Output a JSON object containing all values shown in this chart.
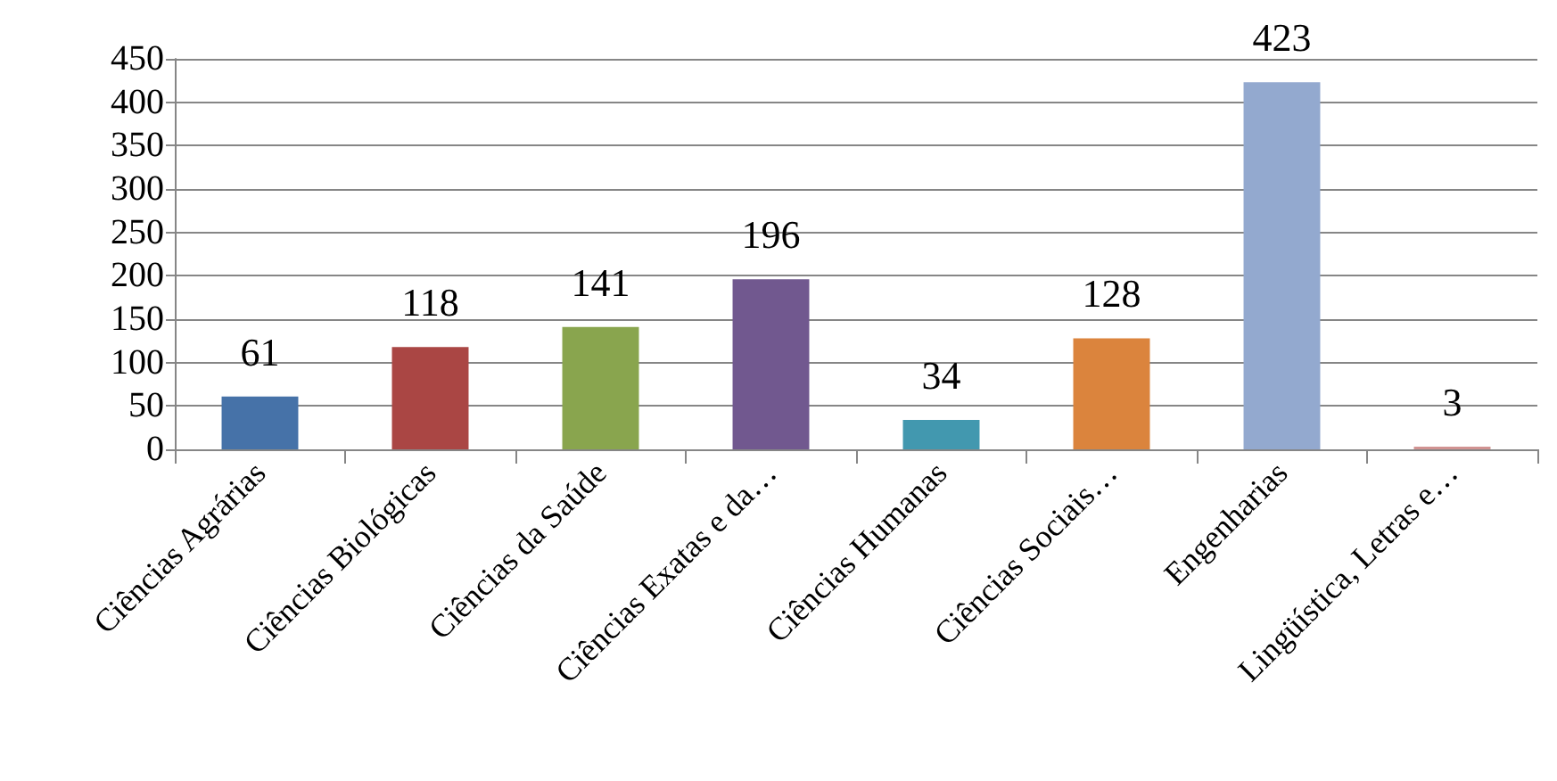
{
  "chart_data": {
    "type": "bar",
    "categories": [
      "Ciências Agrárias",
      "Ciências Biológicas",
      "Ciências da Saúde",
      "Ciências Exatas e da…",
      "Ciências Humanas",
      "Ciências Sociais…",
      "Engenharias",
      "Lingüística, Letras e…"
    ],
    "values": [
      61,
      118,
      141,
      196,
      34,
      128,
      423,
      3
    ],
    "colors": [
      "#4672a8",
      "#aa4644",
      "#89a54e",
      "#71588f",
      "#4298af",
      "#db843d",
      "#93a9cf",
      "#d19392"
    ],
    "ylim": [
      0,
      450
    ],
    "yticks": [
      0,
      50,
      100,
      150,
      200,
      250,
      300,
      350,
      400,
      450
    ],
    "grid": "y",
    "data_labels": true
  }
}
